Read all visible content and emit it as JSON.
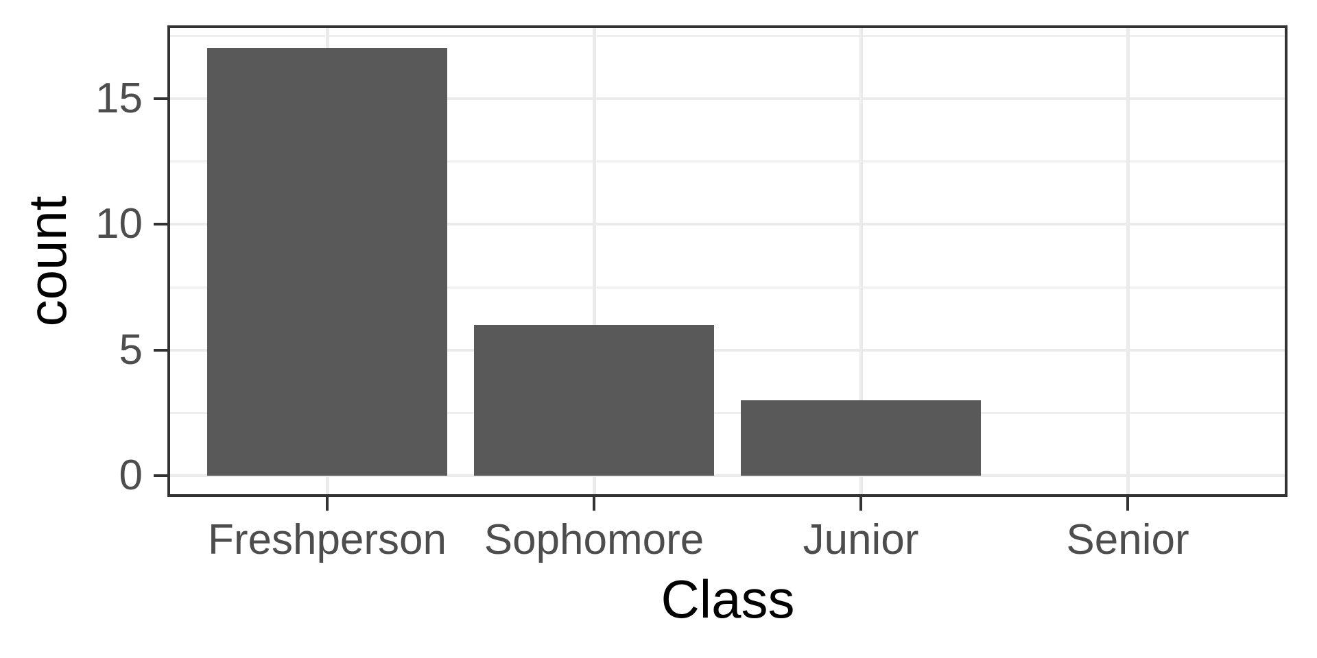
{
  "chart_data": {
    "type": "bar",
    "title": "",
    "xlabel": "Class",
    "ylabel": "count",
    "categories": [
      "Freshperson",
      "Sophomore",
      "Junior",
      "Senior"
    ],
    "values": [
      17,
      6,
      3,
      0
    ],
    "y_major_ticks": [
      0,
      5,
      10,
      15
    ],
    "y_major_tick_labels": [
      "0",
      "5",
      "10",
      "15"
    ],
    "y_minor_ticks": [
      2.5,
      7.5,
      12.5,
      17.5
    ],
    "ylim": [
      -0.9,
      17.85
    ],
    "grid": "major and minor horizontal, major vertical at category centers",
    "legend": false,
    "theme": "ggplot2 theme_bw style, white background, boxed panel"
  },
  "colors": {
    "bar_fill": "#595959",
    "panel_border": "#333333",
    "tick_mark": "#333333",
    "grid_major": "#EBEBEB",
    "grid_minor": "#F0F0F0",
    "axis_text": "#4D4D4D",
    "axis_title": "#000000",
    "background": "#FFFFFF"
  }
}
